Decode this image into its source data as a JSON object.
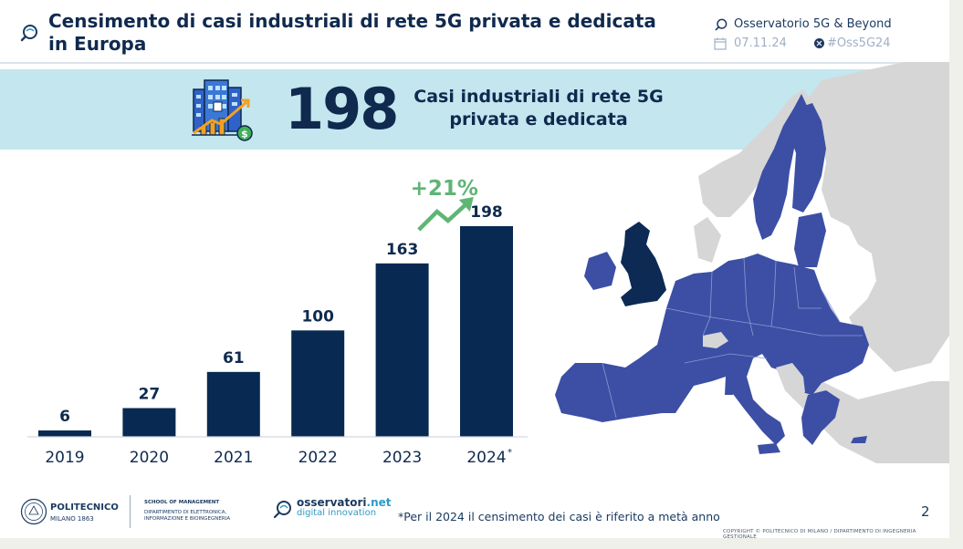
{
  "header": {
    "title": "Censimento di casi industriali di rete 5G privata e dedicata in Europa",
    "brand": "Osservatorio 5G & Beyond",
    "date": "07.11.24",
    "hashtag": "#Oss5G24"
  },
  "banner": {
    "big_number": "198",
    "line1": "Casi industriali di rete 5G",
    "line2": "privata e dedicata"
  },
  "chart_data": {
    "type": "bar",
    "categories": [
      "2019",
      "2020",
      "2021",
      "2022",
      "2023",
      "2024"
    ],
    "category_suffix": [
      "",
      "",
      "",
      "",
      "",
      "*"
    ],
    "values": [
      6,
      27,
      61,
      100,
      163,
      198
    ],
    "title": "",
    "xlabel": "",
    "ylabel": "",
    "ylim": [
      0,
      198
    ],
    "grid": false,
    "bar_color": "#082a52",
    "annotation": {
      "text": "+21%",
      "color": "#5fb574",
      "between": [
        "2023",
        "2024"
      ]
    }
  },
  "footer": {
    "poli_name": "POLITECNICO",
    "poli_sub": "MILANO 1863",
    "school_line1": "SCHOOL OF MANAGEMENT",
    "school_line2": "DIPARTIMENTO DI ELETTRONICA,",
    "school_line3": "INFORMAZIONE E BIOINGEGNERIA",
    "oss_name": "osservatori",
    "oss_name_suffix": ".net",
    "oss_sub": "digital innovation",
    "footnote": "*Per il 2024 il censimento dei casi è riferito a metà anno",
    "page_number": "2",
    "copyright": "COPYRIGHT © POLITECNICO DI MILANO / DIPARTIMENTO DI INGEGNERIA GESTIONALE"
  },
  "colors": {
    "navy": "#0f2a4e",
    "banner_bg": "#c3e6ef",
    "eu_blue": "#3c4fa5",
    "uk_navy": "#0d2a55",
    "non_eu_grey": "#d6d6d6",
    "growth_green": "#5fb574"
  },
  "icons": {
    "title": "search-magnifier-icon",
    "building": "building-growth-icon",
    "date": "calendar-icon",
    "x": "x-logo-icon"
  }
}
